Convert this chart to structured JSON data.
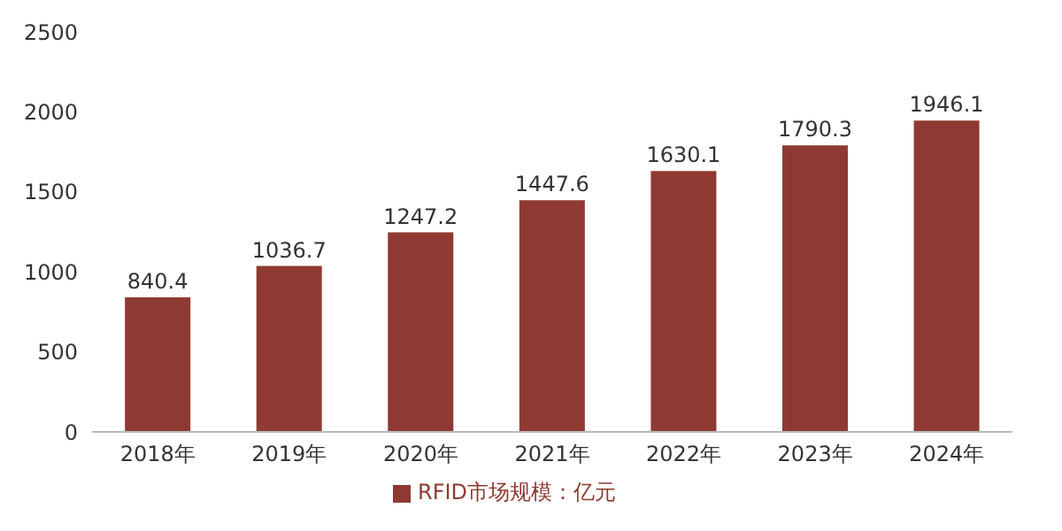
{
  "chart_data": {
    "type": "bar",
    "categories": [
      "2018年",
      "2019年",
      "2020年",
      "2021年",
      "2022年",
      "2023年",
      "2024年"
    ],
    "series": [
      {
        "name": "RFID市场规模：亿元",
        "color": "#8e3a32",
        "values": [
          840.4,
          1036.7,
          1247.2,
          1447.6,
          1630.1,
          1790.3,
          1946.1
        ]
      }
    ],
    "ylim": [
      0,
      2500
    ],
    "yticks": [
      0,
      500,
      1000,
      1500,
      2000,
      2500
    ],
    "data_labels": true,
    "legend": "bottom",
    "grid": false
  }
}
